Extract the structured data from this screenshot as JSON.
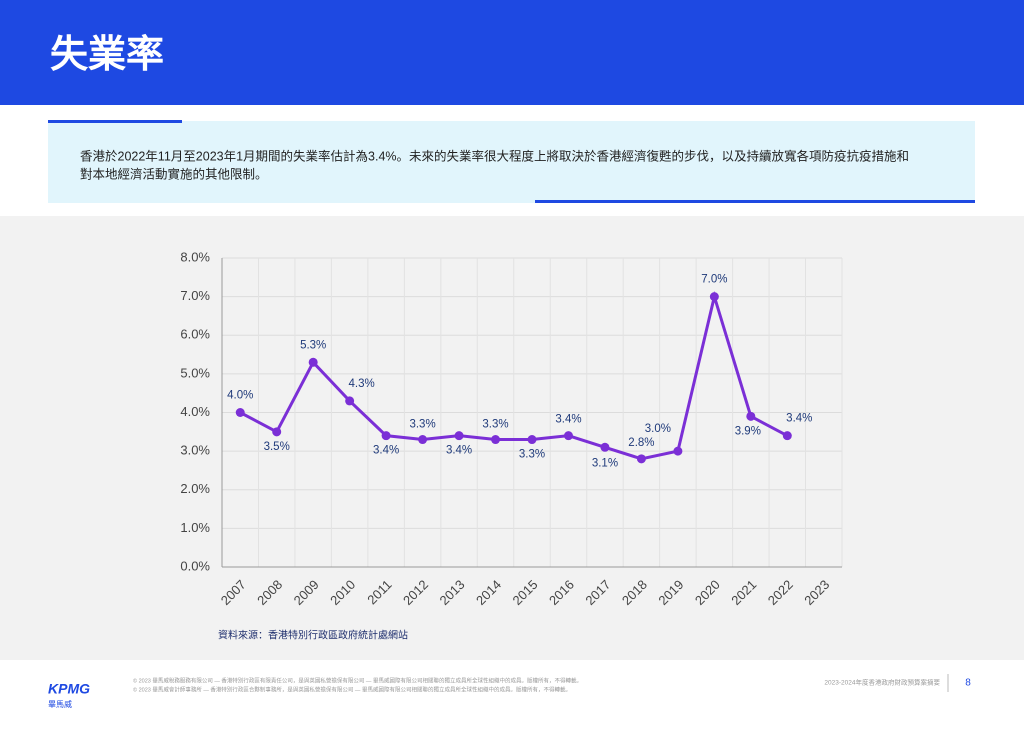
{
  "header": {
    "title": "失業率"
  },
  "summary": {
    "lines": [
      "香港於2022年11月至2023年1月期間的失業率估計為3.4%。未來的失業率很大程度上將取決於香港經濟復甦的步伐，以及持續放寬各項防疫抗疫措施和",
      "對本地經濟活動實施的其他限制。"
    ]
  },
  "chart_data": {
    "type": "line",
    "categories": [
      "2007",
      "2008",
      "2009",
      "2010",
      "2011",
      "2012",
      "2013",
      "2014",
      "2015",
      "2016",
      "2017",
      "2018",
      "2019",
      "2020",
      "2021",
      "2022",
      "2023"
    ],
    "series": [
      {
        "color": "#7b2fd6",
        "values": [
          4.0,
          3.5,
          5.3,
          4.3,
          3.4,
          3.3,
          3.4,
          3.3,
          3.3,
          3.4,
          3.1,
          2.8,
          3.0,
          7.0,
          3.9,
          3.4,
          null
        ],
        "value_labels": [
          "4.0%",
          "3.5%",
          "5.3%",
          "4.3%",
          "3.4%",
          "3.3%",
          "3.4%",
          "3.3%",
          "3.3%",
          "3.4%",
          "3.1%",
          "2.8%",
          "3.0%",
          "7.0%",
          "3.9%",
          "3.4%",
          null
        ]
      }
    ],
    "ylim": [
      0,
      8
    ],
    "yticks": [
      {
        "value": 0,
        "label": "0.0%"
      },
      {
        "value": 1,
        "label": "1.0%"
      },
      {
        "value": 2,
        "label": "2.0%"
      },
      {
        "value": 3,
        "label": "3.0%"
      },
      {
        "value": 4,
        "label": "4.0%"
      },
      {
        "value": 5,
        "label": "5.0%"
      },
      {
        "value": 6,
        "label": "6.0%"
      },
      {
        "value": 7,
        "label": "7.0%"
      },
      {
        "value": 8,
        "label": "8.0%"
      }
    ],
    "grid": true,
    "source": "資料來源：香港特別行政區政府統計處網站"
  },
  "footer": {
    "logo": "KPMG",
    "logo_sub": "畢馬威",
    "notes": [
      "© 2023 畢馬威稅務服務有限公司 — 香港特別行政區有限責任公司，是與英國私營擔保有限公司 — 畢馬威國際有限公司相關聯的獨立成員所全球性組織中的成員。版權所有，不得轉載。",
      "© 2023 畢馬威會計師事務所 — 香港特別行政區合夥制事務所，是與英國私營擔保有限公司 — 畢馬威國際有限公司相關聯的獨立成員所全球性組織中的成員。版權所有，不得轉載。"
    ],
    "doc": "2023-2024年度香港政府財政預算案摘要",
    "page": "8"
  }
}
